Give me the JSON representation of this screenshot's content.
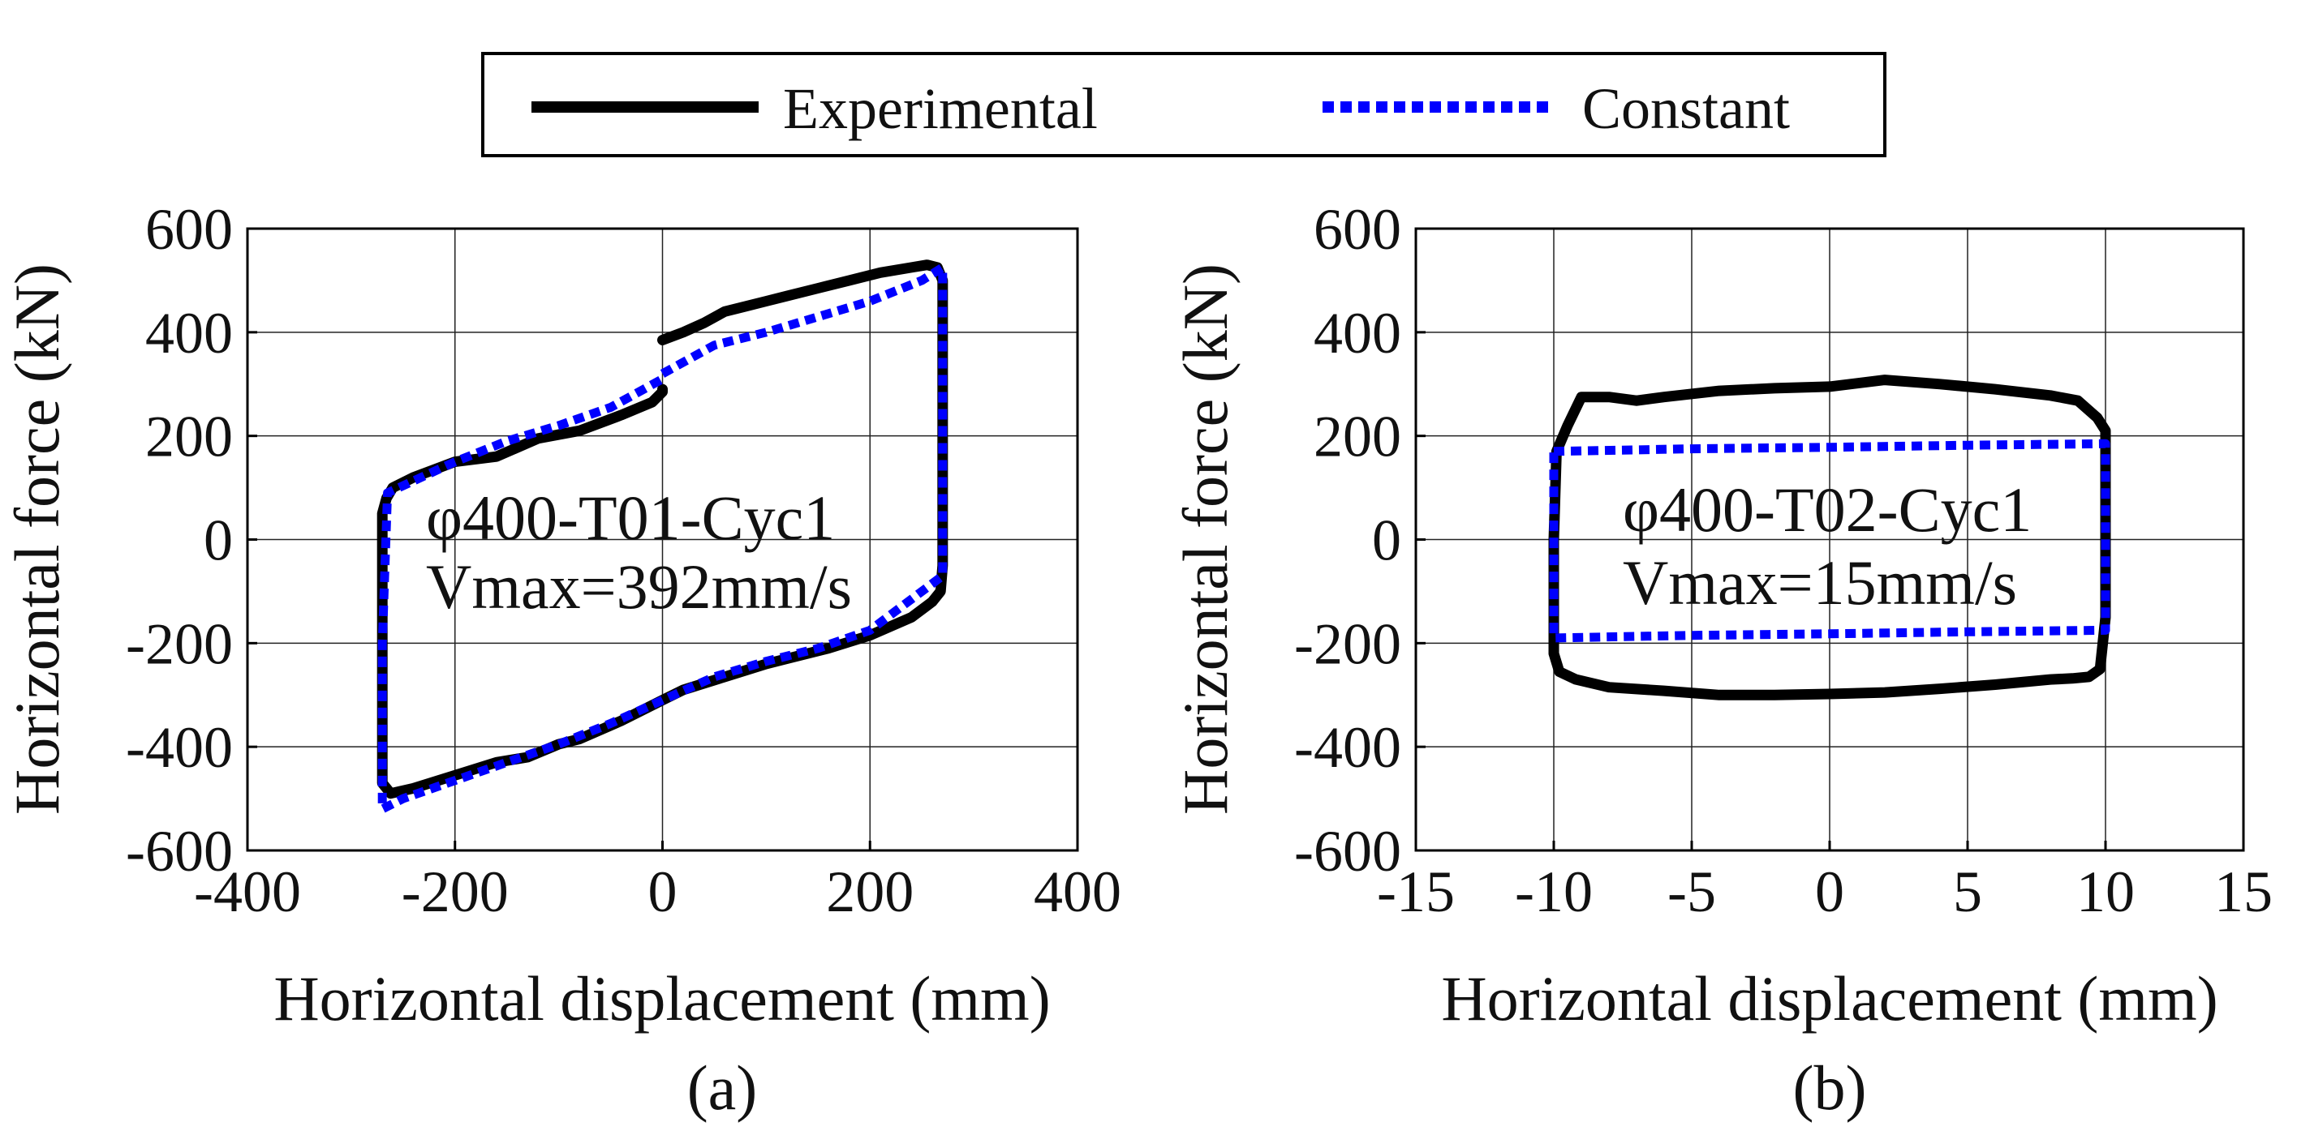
{
  "legend": {
    "items": [
      {
        "label": "Experimental",
        "color": "#000000",
        "dash": "solid"
      },
      {
        "label": "Constant",
        "color": "#0000ff",
        "dash": "dotted"
      }
    ]
  },
  "chart_data": [
    {
      "type": "line",
      "panel_label": "(a)",
      "annotation": [
        "φ400-T01-Cyc1",
        "Vmax=392mm/s"
      ],
      "xlabel": "Horizontal displacement (mm)",
      "ylabel": "Horizontal force (kN)",
      "xlim": [
        -400,
        400
      ],
      "ylim": [
        -600,
        600
      ],
      "xticks": [
        -400,
        -200,
        0,
        200,
        400
      ],
      "yticks": [
        -600,
        -400,
        -200,
        0,
        200,
        400,
        600
      ],
      "grid": true,
      "series": [
        {
          "name": "Experimental",
          "color": "#000000",
          "x": [
            0,
            20,
            40,
            60,
            80,
            100,
            120,
            150,
            180,
            210,
            240,
            255,
            265,
            270,
            270,
            270,
            268,
            260,
            240,
            200,
            160,
            120,
            100,
            60,
            20,
            0,
            -40,
            -80,
            -100,
            -130,
            -160,
            -200,
            -240,
            -262,
            -270,
            -270,
            -270,
            -266,
            -260,
            -240,
            -200,
            -160,
            -120,
            -80,
            -40,
            -10,
            0,
            0
          ],
          "y": [
            385,
            400,
            418,
            440,
            450,
            460,
            470,
            485,
            500,
            515,
            525,
            530,
            525,
            500,
            200,
            -50,
            -100,
            -120,
            -150,
            -185,
            -210,
            -230,
            -240,
            -265,
            -290,
            -310,
            -350,
            -385,
            -395,
            -420,
            -430,
            -455,
            -480,
            -490,
            -470,
            -200,
            50,
            80,
            100,
            120,
            150,
            160,
            195,
            210,
            240,
            265,
            285,
            290
          ]
        },
        {
          "name": "Constant",
          "color": "#0000ff",
          "x": [
            0,
            50,
            100,
            150,
            200,
            250,
            270,
            270,
            270,
            200,
            150,
            100,
            50,
            0,
            -50,
            -100,
            -150,
            -200,
            -250,
            -270,
            -270,
            -265,
            -200,
            -150,
            -100,
            -50,
            0
          ],
          "y": [
            320,
            375,
            400,
            430,
            460,
            500,
            525,
            200,
            -70,
            -175,
            -210,
            -235,
            -265,
            -310,
            -355,
            -395,
            -430,
            -465,
            -500,
            -520,
            -200,
            90,
            150,
            190,
            220,
            255,
            310
          ]
        }
      ]
    },
    {
      "type": "line",
      "panel_label": "(b)",
      "annotation": [
        "φ400-T02-Cyc1",
        "Vmax=15mm/s"
      ],
      "xlabel": "Horizontal displacement (mm)",
      "ylabel": "Horizontal force (kN)",
      "xlim": [
        -15,
        15
      ],
      "ylim": [
        -600,
        600
      ],
      "xticks": [
        -15,
        -10,
        -5,
        0,
        5,
        10,
        15
      ],
      "yticks": [
        -600,
        -400,
        -200,
        0,
        200,
        400,
        600
      ],
      "grid": true,
      "series": [
        {
          "name": "Experimental",
          "color": "#000000",
          "x": [
            0,
            2,
            4,
            6,
            8,
            9,
            9.7,
            10,
            10,
            9.8,
            9.4,
            8.8,
            8,
            6,
            4,
            2,
            0,
            -2,
            -4,
            -6,
            -8,
            -9.2,
            -9.8,
            -10,
            -10,
            -9.9,
            -9.5,
            -9,
            -8,
            -7,
            -6,
            -4,
            -2,
            0
          ],
          "y": [
            295,
            308,
            300,
            290,
            278,
            268,
            235,
            210,
            -150,
            -250,
            -265,
            -268,
            -270,
            -280,
            -288,
            -295,
            -298,
            -300,
            -300,
            -292,
            -285,
            -270,
            -255,
            -220,
            0,
            170,
            220,
            275,
            275,
            268,
            275,
            287,
            292,
            295
          ]
        },
        {
          "name": "Constant",
          "color": "#0000ff",
          "x": [
            -10,
            -5,
            0,
            5,
            10,
            10,
            10,
            5,
            0,
            -5,
            -10,
            -10,
            -10
          ],
          "y": [
            170,
            175,
            178,
            182,
            185,
            0,
            -175,
            -178,
            -182,
            -185,
            -190,
            0,
            170
          ]
        }
      ]
    }
  ]
}
